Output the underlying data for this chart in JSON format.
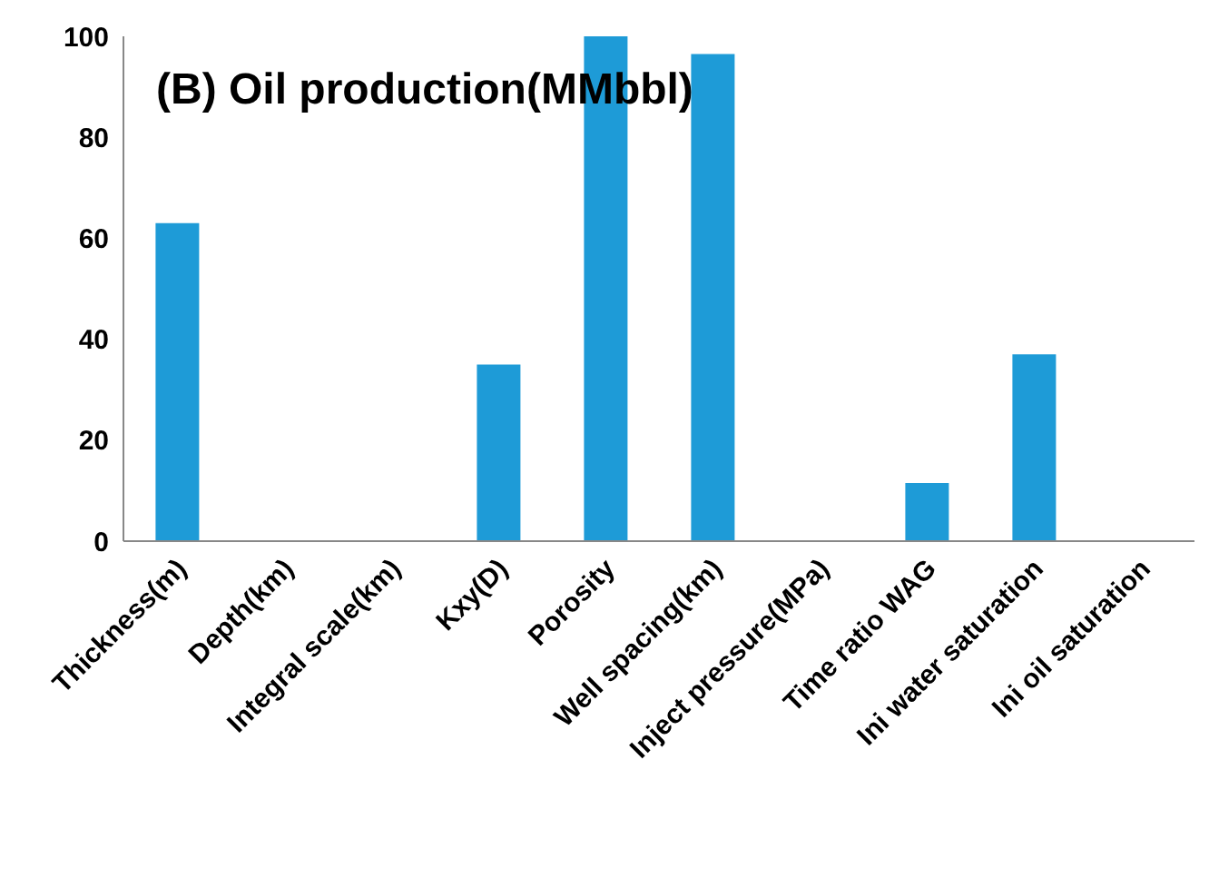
{
  "chart_data": {
    "type": "bar",
    "title": "(B) Oil production(MMbbl)",
    "categories": [
      "Thickness(m)",
      "Depth(km)",
      "Integral scale(km)",
      "Kxy(D)",
      "Porosity",
      "Well spacing(km)",
      "Inject pressure(MPa)",
      "Time ratio WAG",
      "Ini water saturation",
      "Ini oil saturation"
    ],
    "values": [
      63,
      0,
      0,
      35,
      100,
      96.5,
      0,
      11.5,
      37,
      0
    ],
    "color": "#1e9bd7",
    "ylim": [
      0,
      100
    ],
    "yticks": [
      0,
      20,
      40,
      60,
      80,
      100
    ],
    "grid": false
  }
}
